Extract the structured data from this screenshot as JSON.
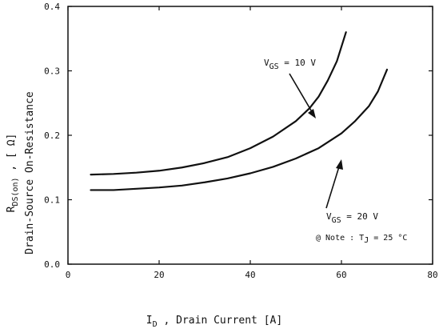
{
  "chart_data": {
    "type": "line",
    "title": "",
    "xlabel": "I_D , Drain Current  [A]",
    "xlabel_main": "I",
    "xlabel_sub": "D",
    "xlabel_rest": " , Drain Current   [A]",
    "ylabel_top_main": "R",
    "ylabel_top_sub": "DS(on)",
    "ylabel_top_rest": " , [ Ω]",
    "ylabel_bottom": "Drain-Source On-Resistance",
    "xlim": [
      0,
      80
    ],
    "ylim": [
      0.0,
      0.4
    ],
    "xticks": [
      "0",
      "20",
      "40",
      "60",
      "80"
    ],
    "yticks": [
      "0.0",
      "0.1",
      "0.2",
      "0.3",
      "0.4"
    ],
    "grid": false,
    "series": [
      {
        "name": "V_GS = 10 V",
        "label_main": "V",
        "label_sub": "GS",
        "label_rest": " = 10 V",
        "x": [
          5,
          10,
          15,
          20,
          25,
          30,
          35,
          40,
          45,
          50,
          53,
          55,
          57,
          59,
          61
        ],
        "values": [
          0.139,
          0.14,
          0.142,
          0.145,
          0.15,
          0.157,
          0.166,
          0.18,
          0.198,
          0.222,
          0.242,
          0.26,
          0.285,
          0.315,
          0.36
        ]
      },
      {
        "name": "V_GS = 20 V",
        "label_main": "V",
        "label_sub": "GS",
        "label_rest": " = 20 V",
        "x": [
          5,
          10,
          15,
          20,
          25,
          30,
          35,
          40,
          45,
          50,
          55,
          60,
          63,
          66,
          68,
          70
        ],
        "values": [
          0.115,
          0.115,
          0.117,
          0.119,
          0.122,
          0.127,
          0.133,
          0.141,
          0.151,
          0.164,
          0.18,
          0.203,
          0.222,
          0.245,
          0.268,
          0.302
        ]
      }
    ],
    "annotation": {
      "prefix": "@ Note : T",
      "sub": "J",
      "suffix": " = 25 °C"
    }
  }
}
